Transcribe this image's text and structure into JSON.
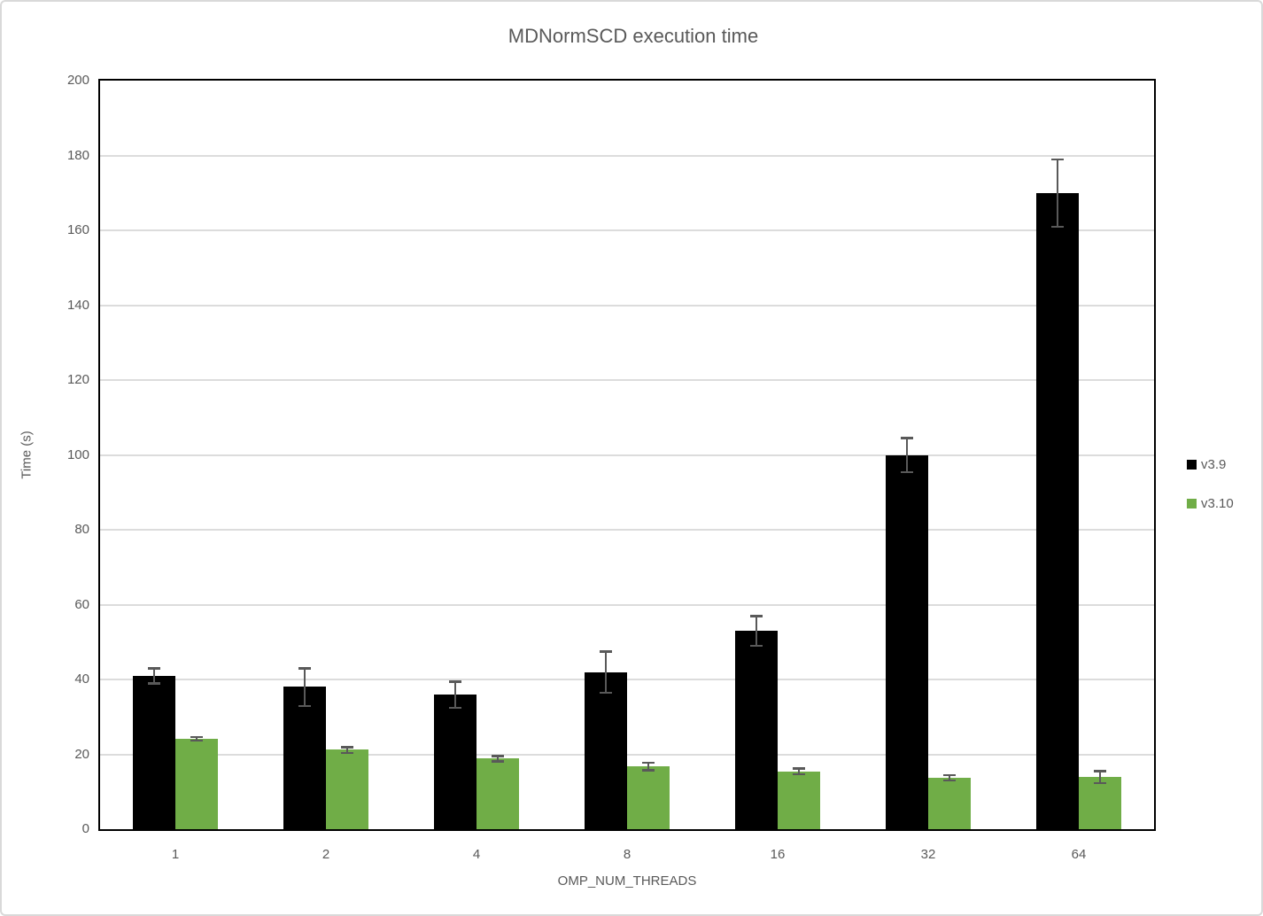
{
  "title": "MDNormSCD execution time",
  "colors": {
    "series_v39": "#000000",
    "series_v310": "#70ad47",
    "error_bar": "#595959",
    "gridline": "#dcdcdc",
    "text": "#595959",
    "plot_border": "#000000",
    "frame_border": "#d9d9d9"
  },
  "legend": {
    "position": "right",
    "entries": [
      "v3.9",
      "v3.10"
    ]
  },
  "chart_data": {
    "type": "bar",
    "title": "MDNormSCD execution time",
    "xlabel": "OMP_NUM_THREADS",
    "ylabel": "Time (s)",
    "categories": [
      "1",
      "2",
      "4",
      "8",
      "16",
      "32",
      "64"
    ],
    "series": [
      {
        "name": "v3.9",
        "color": "#000000",
        "values": [
          41,
          38,
          36,
          42,
          53,
          100,
          170
        ],
        "errors": [
          2,
          5,
          3.5,
          5.5,
          4,
          4.5,
          9
        ]
      },
      {
        "name": "v3.10",
        "color": "#70ad47",
        "values": [
          24.2,
          21.2,
          18.9,
          16.8,
          15.5,
          13.8,
          14
        ],
        "errors": [
          0.5,
          0.8,
          0.7,
          1,
          0.8,
          0.7,
          1.6
        ]
      }
    ],
    "ylim": [
      0,
      200
    ],
    "ytick_step": 20,
    "grid": true,
    "legend_position": "right"
  }
}
